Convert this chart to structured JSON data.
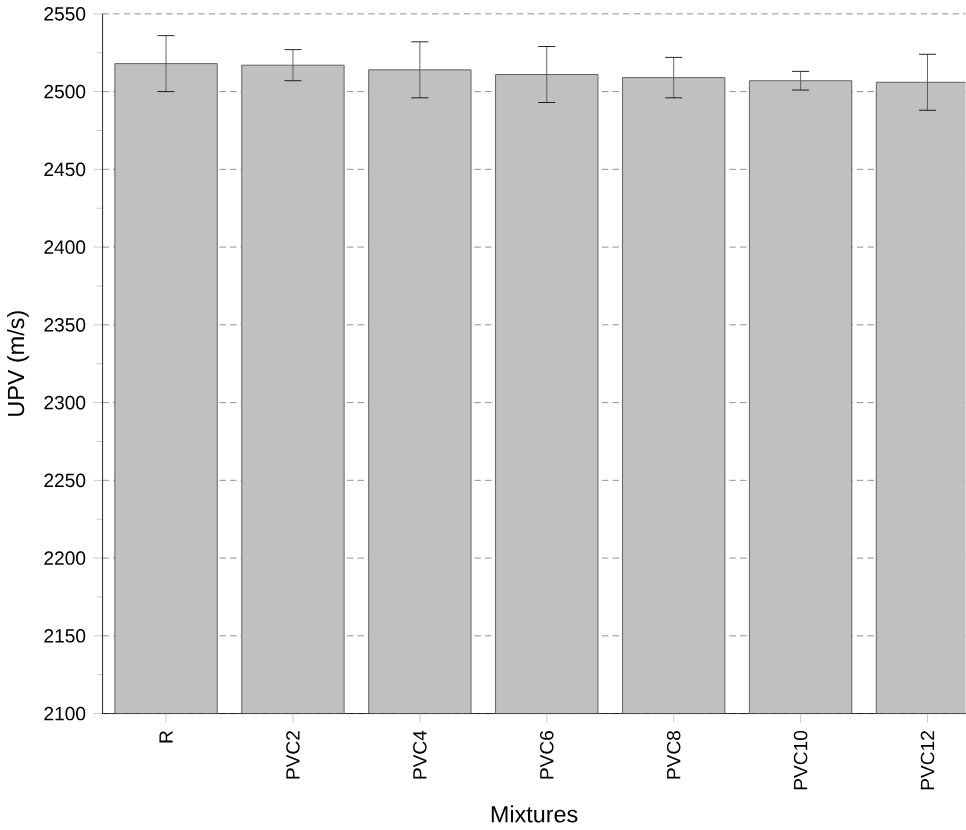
{
  "chart_data": {
    "type": "bar",
    "xlabel": "Mixtures",
    "ylabel": "UPV (m/s)",
    "categories": [
      "R",
      "PVC2",
      "PVC4",
      "PVC6",
      "PVC8",
      "PVC10",
      "PVC12"
    ],
    "values": [
      2518,
      2517,
      2514,
      2511,
      2509,
      2507,
      2506
    ],
    "errors": [
      18,
      10,
      18,
      18,
      13,
      6,
      18
    ],
    "color": "#c0c0c0",
    "ylim": [
      2100,
      2550
    ],
    "yticks": [
      2100,
      2150,
      2200,
      2250,
      2300,
      2350,
      2400,
      2450,
      2500,
      2550
    ],
    "grid": "y"
  }
}
